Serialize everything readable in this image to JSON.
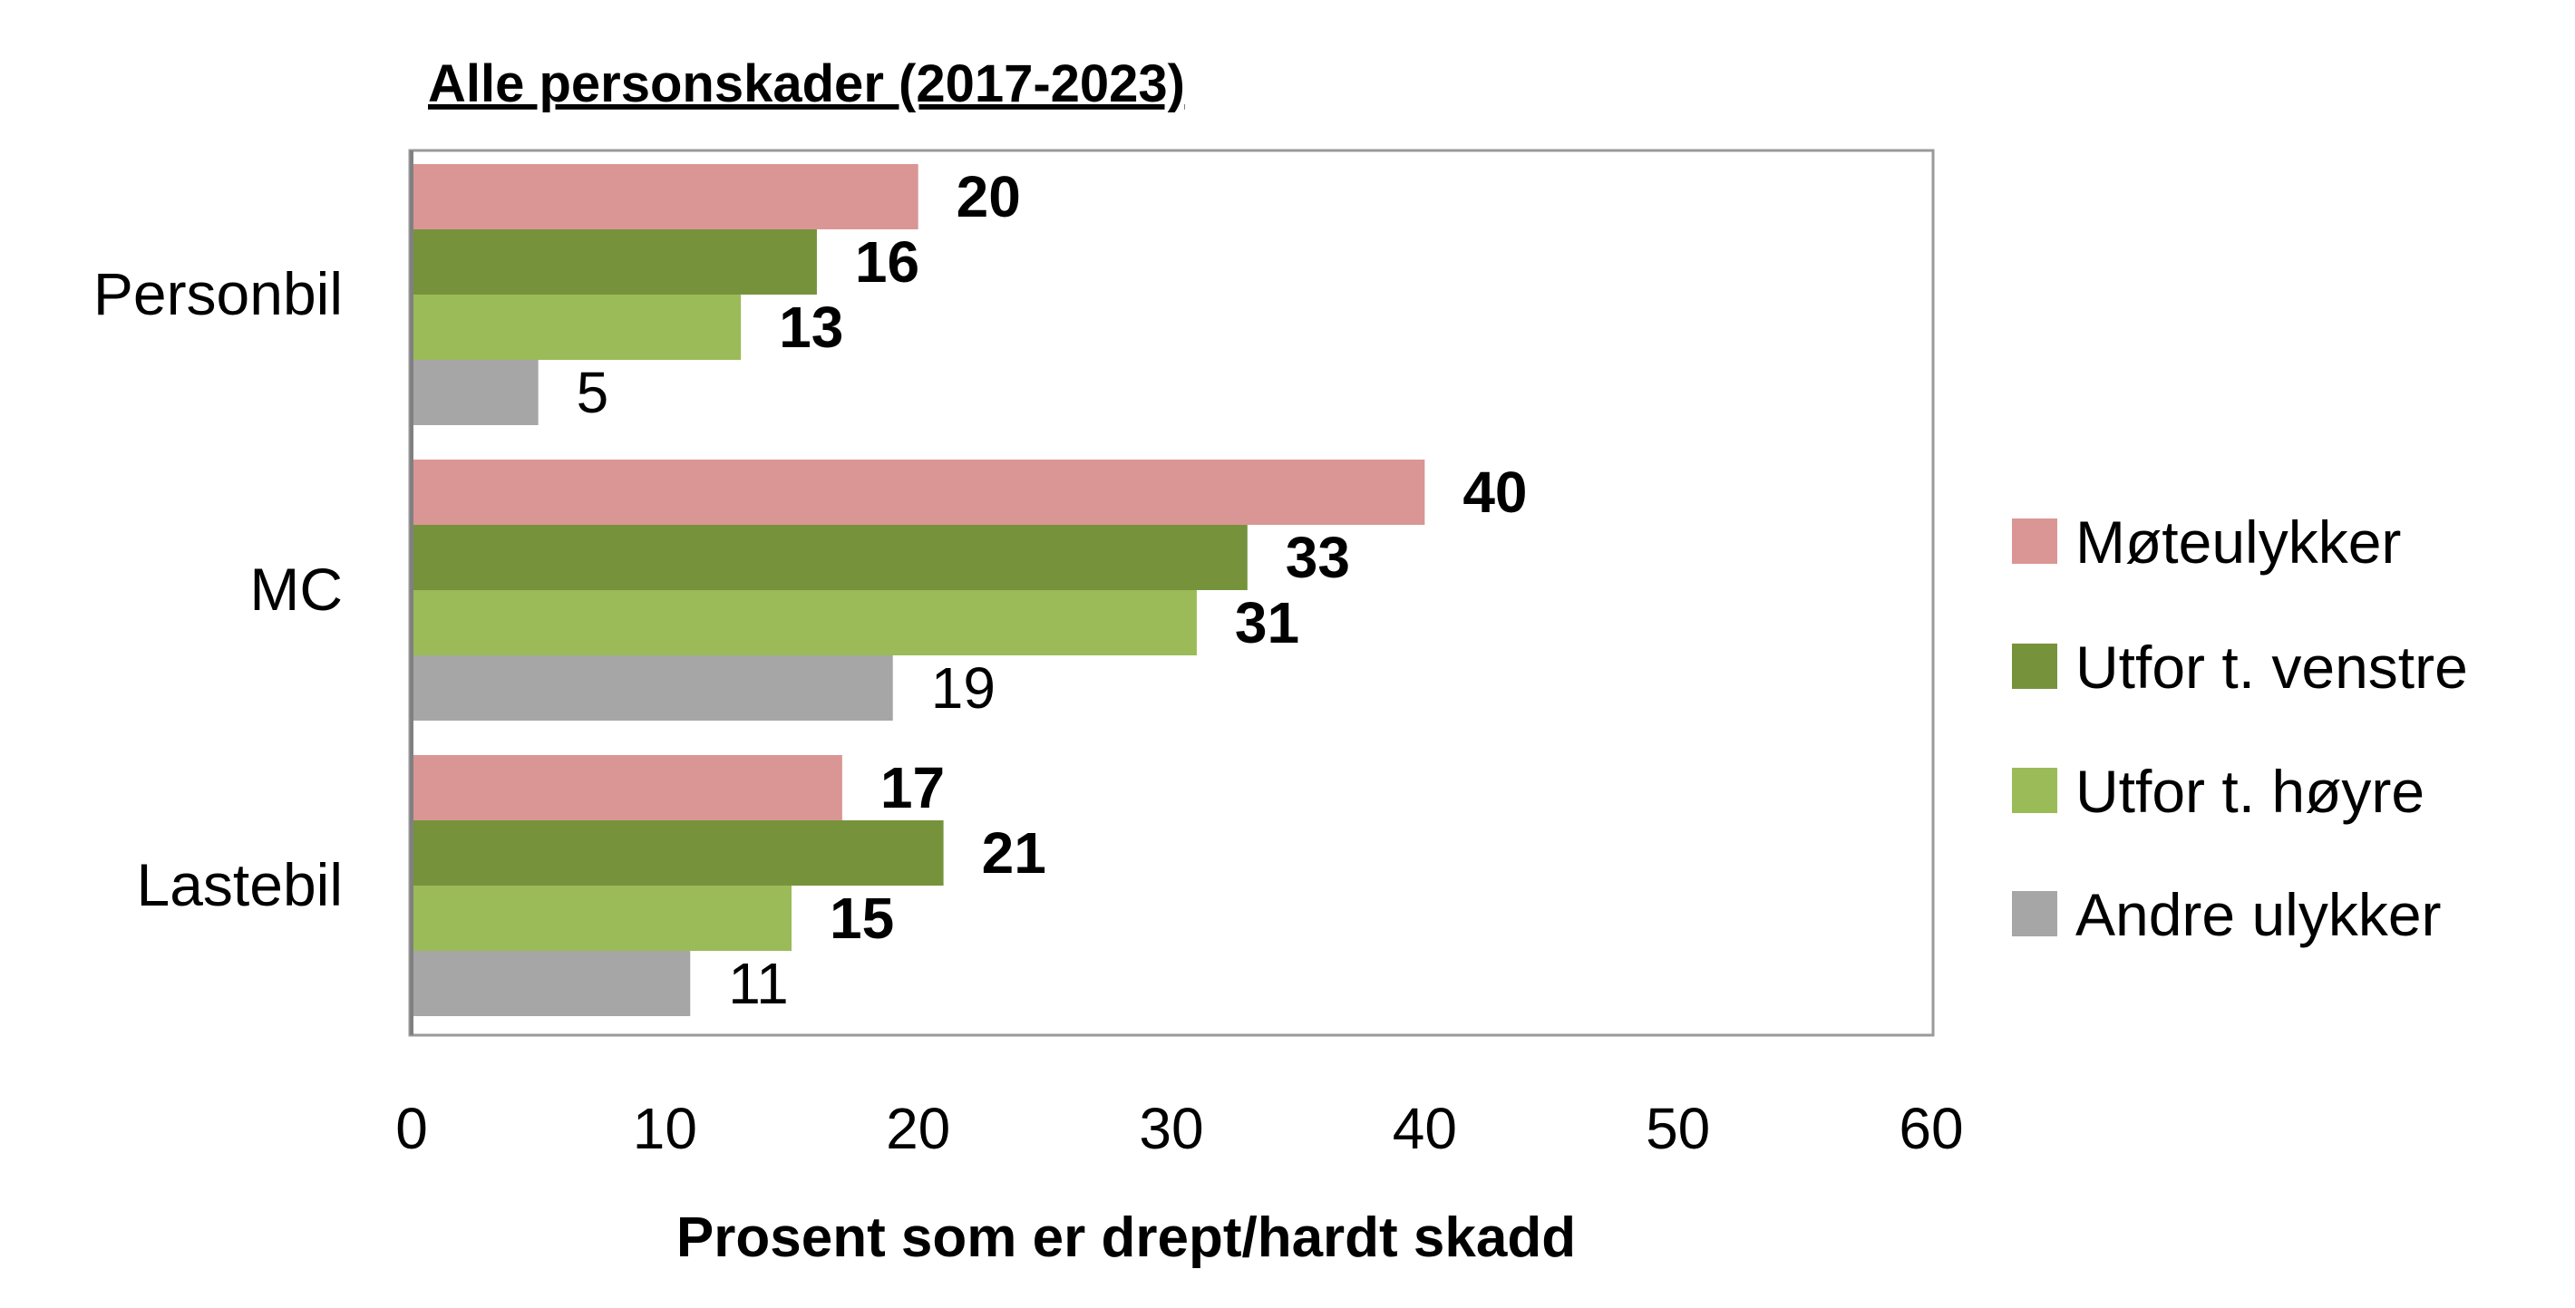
{
  "chart_data": {
    "type": "bar",
    "orientation": "horizontal",
    "title": "Alle personskader (2017-2023)",
    "xlabel": "Prosent som er drept/hardt skadd",
    "ylabel": "",
    "categories": [
      "Personbil",
      "MC",
      "Lastebil"
    ],
    "xlim": [
      0,
      60
    ],
    "xticks": [
      "0",
      "10",
      "20",
      "30",
      "40",
      "50",
      "60"
    ],
    "grid": false,
    "legend_position": "right",
    "series": [
      {
        "name": "Møteulykker",
        "color": "#DA9694",
        "values": [
          20,
          40,
          17
        ],
        "label_weight": "bold"
      },
      {
        "name": "Utfor t. venstre",
        "color": "#76933C",
        "values": [
          16,
          33,
          21
        ],
        "label_weight": "bold"
      },
      {
        "name": "Utfor t. høyre",
        "color": "#9BBB59",
        "values": [
          13,
          31,
          15
        ],
        "label_weight": "bold"
      },
      {
        "name": "Andre ulykker",
        "color": "#A6A6A6",
        "values": [
          5,
          19,
          11
        ],
        "label_weight": "normal"
      }
    ]
  }
}
